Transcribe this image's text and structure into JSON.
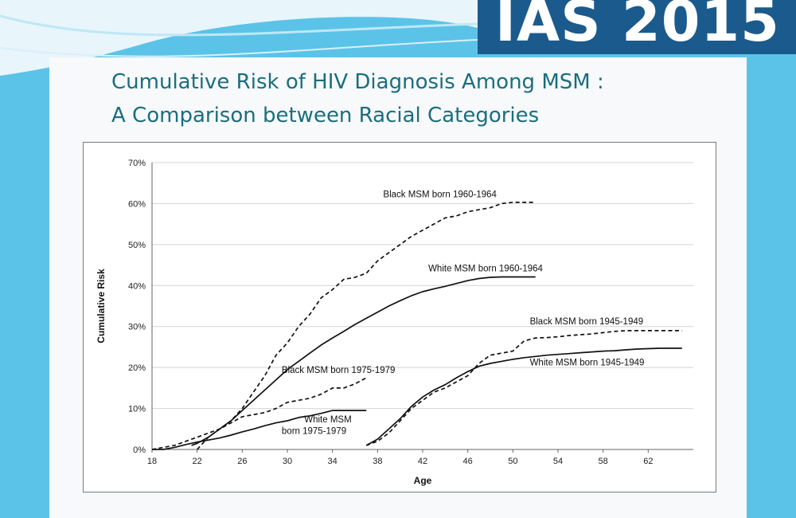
{
  "slide": {
    "brand": "IAS 2015",
    "title_line1": "Cumulative Risk of HIV Diagnosis Among MSM :",
    "title_line2": "A Comparison between Racial Categories"
  },
  "colors": {
    "background": "#5bc3e8",
    "brand_bg": "#1b5a8c",
    "title": "#1a6e7e",
    "line": "#111111"
  },
  "chart_data": {
    "type": "line",
    "xlabel": "Age",
    "ylabel": "Cumulative Risk",
    "xlim": [
      18,
      66
    ],
    "ylim": [
      0,
      70
    ],
    "x_ticks": [
      18,
      22,
      26,
      30,
      34,
      38,
      42,
      46,
      50,
      54,
      58,
      62
    ],
    "y_ticks": [
      0,
      10,
      20,
      30,
      40,
      50,
      60,
      70
    ],
    "y_tick_labels": [
      "0%",
      "10%",
      "20%",
      "30%",
      "40%",
      "50%",
      "60%",
      "70%"
    ],
    "grid": "horizontal",
    "legend": "none (labels annotated next to lines)",
    "series": [
      {
        "name": "Black MSM born 1960-1964",
        "style": "dashed",
        "points": [
          [
            22,
            0
          ],
          [
            23,
            3
          ],
          [
            24,
            5
          ],
          [
            25,
            7
          ],
          [
            26,
            10
          ],
          [
            27,
            14
          ],
          [
            28,
            18
          ],
          [
            29,
            23
          ],
          [
            30,
            26
          ],
          [
            31,
            30
          ],
          [
            32,
            33
          ],
          [
            33,
            37
          ],
          [
            34,
            39
          ],
          [
            35,
            41.5
          ],
          [
            36,
            42
          ],
          [
            37,
            43
          ],
          [
            38,
            46
          ],
          [
            39,
            48
          ],
          [
            40,
            50
          ],
          [
            41,
            52
          ],
          [
            42,
            53.5
          ],
          [
            43,
            55
          ],
          [
            44,
            56.5
          ],
          [
            45,
            57
          ],
          [
            46,
            58
          ],
          [
            47,
            58.5
          ],
          [
            48,
            59
          ],
          [
            49,
            60
          ],
          [
            50,
            60.3
          ],
          [
            51,
            60.3
          ],
          [
            52,
            60.3
          ]
        ]
      },
      {
        "name": "White MSM born 1960-1964",
        "style": "solid",
        "points": [
          [
            21.5,
            1
          ],
          [
            22,
            1.5
          ],
          [
            23,
            3
          ],
          [
            24,
            5
          ],
          [
            25,
            7
          ],
          [
            26,
            9.5
          ],
          [
            27,
            12
          ],
          [
            28,
            14.5
          ],
          [
            29,
            17
          ],
          [
            30,
            19.5
          ],
          [
            31,
            21.5
          ],
          [
            32,
            23.5
          ],
          [
            33,
            25.5
          ],
          [
            34,
            27.2
          ],
          [
            35,
            28.8
          ],
          [
            36,
            30.5
          ],
          [
            37,
            32
          ],
          [
            38,
            33.5
          ],
          [
            39,
            35
          ],
          [
            40,
            36.3
          ],
          [
            41,
            37.5
          ],
          [
            42,
            38.5
          ],
          [
            43,
            39.2
          ],
          [
            44,
            39.8
          ],
          [
            45,
            40.5
          ],
          [
            46,
            41.2
          ],
          [
            47,
            41.7
          ],
          [
            48,
            42
          ],
          [
            49,
            42.1
          ],
          [
            50,
            42.1
          ],
          [
            51,
            42.1
          ],
          [
            52,
            42.1
          ]
        ]
      },
      {
        "name": "Black MSM born 1945-1949",
        "style": "dashed",
        "points": [
          [
            37,
            1
          ],
          [
            38,
            2
          ],
          [
            39,
            4
          ],
          [
            40,
            7
          ],
          [
            41,
            10
          ],
          [
            42,
            12
          ],
          [
            43,
            14
          ],
          [
            44,
            15
          ],
          [
            45,
            16.5
          ],
          [
            46,
            18
          ],
          [
            47,
            21
          ],
          [
            48,
            23
          ],
          [
            49,
            23.5
          ],
          [
            50,
            24
          ],
          [
            51,
            26.5
          ],
          [
            52,
            27.2
          ],
          [
            53,
            27.3
          ],
          [
            54,
            27.5
          ],
          [
            55,
            27.8
          ],
          [
            56,
            28
          ],
          [
            57,
            28.2
          ],
          [
            58,
            28.5
          ],
          [
            59,
            28.8
          ],
          [
            60,
            29
          ],
          [
            61,
            29
          ],
          [
            62,
            29
          ],
          [
            63,
            29
          ],
          [
            64,
            29
          ],
          [
            65,
            29
          ]
        ]
      },
      {
        "name": "White MSM born 1945-1949",
        "style": "solid",
        "points": [
          [
            37,
            1
          ],
          [
            38,
            2.5
          ],
          [
            39,
            5
          ],
          [
            40,
            7.5
          ],
          [
            41,
            10.5
          ],
          [
            42,
            12.8
          ],
          [
            43,
            14.5
          ],
          [
            44,
            15.8
          ],
          [
            45,
            17.5
          ],
          [
            46,
            19
          ],
          [
            47,
            20.3
          ],
          [
            48,
            21
          ],
          [
            49,
            21.5
          ],
          [
            50,
            22
          ],
          [
            51,
            22.4
          ],
          [
            52,
            22.7
          ],
          [
            53,
            23
          ],
          [
            54,
            23.2
          ],
          [
            55,
            23.4
          ],
          [
            56,
            23.6
          ],
          [
            57,
            23.8
          ],
          [
            58,
            24
          ],
          [
            59,
            24.1
          ],
          [
            60,
            24.3
          ],
          [
            61,
            24.5
          ],
          [
            62,
            24.6
          ],
          [
            63,
            24.7
          ],
          [
            64,
            24.7
          ],
          [
            65,
            24.7
          ]
        ]
      },
      {
        "name": "Black MSM born 1975-1979",
        "style": "dashed",
        "points": [
          [
            18,
            0
          ],
          [
            19,
            0.5
          ],
          [
            20,
            1
          ],
          [
            21,
            2
          ],
          [
            22,
            3
          ],
          [
            23,
            4
          ],
          [
            24,
            5
          ],
          [
            25,
            6.5
          ],
          [
            26,
            8
          ],
          [
            27,
            8.5
          ],
          [
            28,
            9
          ],
          [
            29,
            10
          ],
          [
            30,
            11.5
          ],
          [
            31,
            12
          ],
          [
            32,
            12.5
          ],
          [
            33,
            13.5
          ],
          [
            34,
            15
          ],
          [
            35,
            15
          ],
          [
            36,
            16
          ],
          [
            37,
            17.5
          ]
        ]
      },
      {
        "name": "White MSM born 1975-1979",
        "style": "solid",
        "points": [
          [
            18,
            0
          ],
          [
            19,
            0
          ],
          [
            20,
            0.5
          ],
          [
            21,
            1.2
          ],
          [
            22,
            1.8
          ],
          [
            23,
            2.3
          ],
          [
            24,
            2.8
          ],
          [
            25,
            3.5
          ],
          [
            26,
            4.3
          ],
          [
            27,
            5
          ],
          [
            28,
            5.8
          ],
          [
            29,
            6.5
          ],
          [
            30,
            7
          ],
          [
            31,
            7.8
          ],
          [
            32,
            8.2
          ],
          [
            33,
            8.8
          ],
          [
            34,
            9.5
          ],
          [
            35,
            9.5
          ],
          [
            36,
            9.5
          ],
          [
            37,
            9.5
          ]
        ]
      }
    ],
    "annotations": [
      {
        "text": "Black MSM born 1960-1964",
        "x": 38.5,
        "y": 61.5,
        "anchor": "start"
      },
      {
        "text": "White MSM born 1960-1964",
        "x": 42.5,
        "y": 43.5,
        "anchor": "start"
      },
      {
        "text": "Black MSM born 1945-1949",
        "x": 51.5,
        "y": 30.5,
        "anchor": "start"
      },
      {
        "text": "White MSM born 1945-1949",
        "x": 51.5,
        "y": 20.5,
        "anchor": "start"
      },
      {
        "text": "Black MSM born 1975-1979",
        "x": 29.5,
        "y": 18.7,
        "anchor": "start"
      },
      {
        "text": "White MSM",
        "x": 31.5,
        "y": 6.6,
        "anchor": "start"
      },
      {
        "text": "born 1975-1979",
        "x": 29.5,
        "y": 3.8,
        "anchor": "start"
      }
    ]
  }
}
